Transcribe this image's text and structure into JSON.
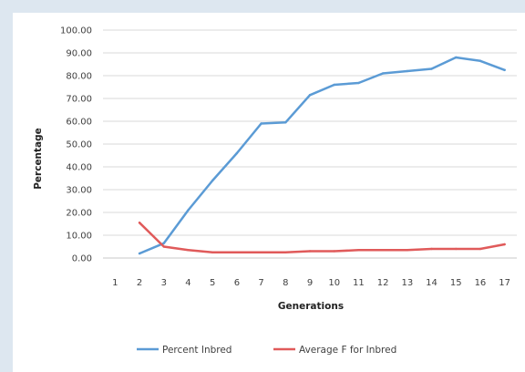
{
  "chart_data": {
    "type": "line",
    "xlabel": "Generations",
    "ylabel": "Percentage",
    "ylim": [
      0,
      100
    ],
    "y_ticks": [
      "100.00",
      "90.00",
      "80.00",
      "70.00",
      "60.00",
      "50.00",
      "40.00",
      "30.00",
      "20.00",
      "10.00",
      "0.00"
    ],
    "categories": [
      "1",
      "2",
      "3",
      "4",
      "5",
      "6",
      "7",
      "8",
      "9",
      "10",
      "11",
      "12",
      "13",
      "14",
      "15",
      "16",
      "17"
    ],
    "grid": true,
    "legend_position": "bottom",
    "series": [
      {
        "name": "Percent Inbred",
        "color": "#5b9bd5",
        "values": [
          null,
          2.0,
          6.5,
          21.0,
          34.0,
          46.0,
          59.0,
          59.5,
          71.5,
          76.0,
          76.8,
          81.0,
          82.0,
          83.0,
          88.0,
          86.5,
          82.5
        ]
      },
      {
        "name": "Average F for Inbred",
        "color": "#e05a5a",
        "values": [
          null,
          15.5,
          5.0,
          3.5,
          2.5,
          2.5,
          2.5,
          2.5,
          3.0,
          3.0,
          3.5,
          3.5,
          3.5,
          4.0,
          4.0,
          4.0,
          6.0
        ]
      }
    ]
  }
}
